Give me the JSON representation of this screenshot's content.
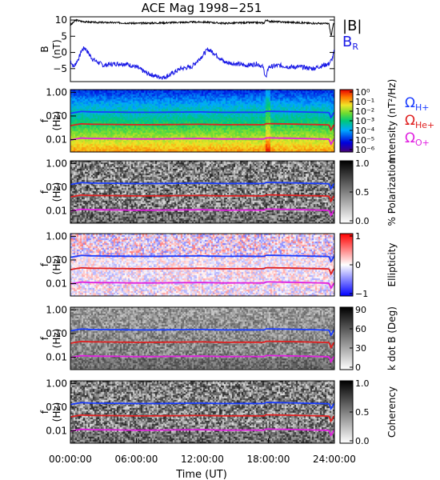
{
  "title": "ACE Mag 1998−251",
  "xlabel": "Time (UT)",
  "xticks": [
    "00:00:00",
    "06:00:00",
    "12:00:00",
    "18:00:00",
    "24:00:00"
  ],
  "colors": {
    "btotal": "#000000",
    "br": "#1a1ae6",
    "h": "#1a3cff",
    "he": "#e02020",
    "o": "#e020e0"
  },
  "chart_data": [
    {
      "type": "line",
      "panel": "B",
      "ylabel_top": "B",
      "ylabel_bottom": "(nT)",
      "ylim": [
        -9,
        11
      ],
      "yticks": [
        "10",
        "5",
        "0",
        "−5"
      ],
      "ytick_values": [
        10,
        5,
        0,
        -5
      ],
      "xlim_hours": [
        0,
        24
      ],
      "series": [
        {
          "name": "|B|",
          "x_hours": [
            0,
            0.5,
            1,
            2,
            4,
            6,
            8,
            10,
            12,
            14,
            15,
            16,
            17,
            17.6,
            17.8,
            18,
            20,
            22,
            23.5,
            23.7,
            23.9,
            24
          ],
          "values": [
            8.4,
            10,
            9.6,
            9.3,
            9.2,
            9.0,
            9.1,
            9.3,
            9.4,
            9.0,
            9.1,
            9.2,
            9.2,
            9.1,
            10.1,
            9.6,
            9.3,
            9.0,
            8.9,
            5.0,
            8.6,
            9.0
          ]
        },
        {
          "name": "B",
          "sub": "R",
          "x_hours": [
            0,
            0.3,
            0.8,
            1,
            1.3,
            2,
            3,
            4,
            5,
            6,
            7,
            8,
            8.5,
            9,
            10,
            11,
            12,
            12.5,
            13,
            14,
            15,
            16,
            17,
            17.5,
            17.8,
            18,
            19,
            20,
            21,
            22,
            23,
            23.5,
            23.8,
            24
          ],
          "values": [
            -2.5,
            -4.5,
            -1.5,
            0.5,
            1.5,
            -2.0,
            -4.0,
            -3.5,
            -3.5,
            -4.5,
            -6.5,
            -7.5,
            -7.7,
            -7.0,
            -5.0,
            -4.5,
            -1.0,
            1.0,
            0.0,
            -3.0,
            -3.5,
            -4.0,
            -3.5,
            -4.5,
            -8.0,
            -4.5,
            -4.0,
            -4.5,
            -4.5,
            -5.0,
            -4.0,
            -3.5,
            -2.0,
            0.5
          ]
        }
      ]
    },
    {
      "type": "heatmap",
      "panel": "Intensity",
      "ylabel_top": "f",
      "ylabel_bottom": "(Hz)",
      "yticks": [
        "1.00",
        "0.10",
        "0.01"
      ],
      "colorbar_label": "Intensity (nT²/Hz)",
      "colorbar_ticks": [
        "10⁰",
        "10⁻¹",
        "10⁻²",
        "10⁻³",
        "10⁻⁴",
        "10⁻⁵",
        "10⁻⁶"
      ],
      "lines": [
        "ΩH+",
        "ΩHe+",
        "ΩO+"
      ]
    },
    {
      "type": "heatmap",
      "panel": "Polarization",
      "ylabel_top": "f",
      "ylabel_bottom": "(Hz)",
      "yticks": [
        "1.00",
        "0.10",
        "0.01"
      ],
      "colorbar_label": "% Polarization",
      "colorbar_ticks": [
        "1.0",
        "0.5",
        "0.0"
      ]
    },
    {
      "type": "heatmap",
      "panel": "Ellipticity",
      "ylabel_top": "f",
      "ylabel_bottom": "(Hz)",
      "yticks": [
        "1.00",
        "0.10",
        "0.01"
      ],
      "colorbar_label": "Ellipticity",
      "colorbar_ticks": [
        "1",
        "0",
        "−1"
      ]
    },
    {
      "type": "heatmap",
      "panel": "k dot B",
      "ylabel_top": "f",
      "ylabel_bottom": "(Hz)",
      "yticks": [
        "1.00",
        "0.10",
        "0.01"
      ],
      "colorbar_label": "k dot B (Deg)",
      "colorbar_ticks": [
        "90",
        "60",
        "30",
        "0"
      ]
    },
    {
      "type": "heatmap",
      "panel": "Coherency",
      "ylabel_top": "f",
      "ylabel_bottom": "(Hz)",
      "yticks": [
        "1.00",
        "0.10",
        "0.01"
      ],
      "colorbar_label": "Coherency",
      "colorbar_ticks": [
        "1.0",
        "0.5",
        "0.0"
      ]
    }
  ],
  "gyro_lines_hz": {
    "x_hours": [
      0,
      1,
      2,
      4,
      6,
      8,
      10,
      12,
      14,
      16,
      17.6,
      17.8,
      20,
      22,
      23.5,
      23.7,
      23.9,
      24
    ],
    "H": [
      0.13,
      0.155,
      0.148,
      0.146,
      0.142,
      0.143,
      0.146,
      0.148,
      0.142,
      0.144,
      0.142,
      0.158,
      0.152,
      0.145,
      0.14,
      0.08,
      0.13,
      0.14
    ]
  }
}
